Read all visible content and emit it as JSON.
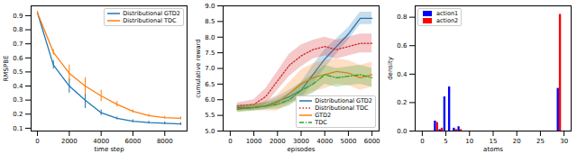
{
  "chart_data": [
    {
      "type": "line",
      "x_label": "time step",
      "y_label": "RMSPBE",
      "xlim": [
        -400,
        9400
      ],
      "xticks": [
        0,
        2000,
        4000,
        6000,
        8000
      ],
      "ylim": [
        0.08,
        0.97
      ],
      "yticks": [
        0.1,
        0.2,
        0.3,
        0.4,
        0.5,
        0.6,
        0.7,
        0.8,
        0.9
      ],
      "legend": "upper right",
      "x": [
        0,
        1000,
        2000,
        3000,
        4000,
        5000,
        6000,
        7000,
        8000,
        9000
      ],
      "series": [
        {
          "name": "Distributional GTD2",
          "color": "#1f77b4",
          "line_style": "solid",
          "values": [
            0.92,
            0.55,
            0.4,
            0.3,
            0.21,
            0.17,
            0.15,
            0.14,
            0.135,
            0.13
          ],
          "errors": [
            0.01,
            0.03,
            0.05,
            0.06,
            0.02,
            0.01,
            0.01,
            0.01,
            0.01,
            0.01
          ]
        },
        {
          "name": "Distributional TDC",
          "color": "#ff7f0e",
          "line_style": "solid",
          "values": [
            0.92,
            0.64,
            0.49,
            0.4,
            0.33,
            0.27,
            0.22,
            0.19,
            0.175,
            0.17
          ],
          "errors": [
            0.01,
            0.02,
            0.06,
            0.06,
            0.04,
            0.02,
            0.01,
            0.01,
            0.01,
            0.01
          ]
        }
      ]
    },
    {
      "type": "line",
      "x_label": "episodes",
      "y_label": "cumulative reward",
      "xlim": [
        -300,
        6300
      ],
      "xticks": [
        0,
        1000,
        2000,
        3000,
        4000,
        5000,
        6000
      ],
      "ylim": [
        5.0,
        9.0
      ],
      "yticks": [
        {
          "value": 5,
          "label": "5.0"
        },
        5.5,
        {
          "value": 6,
          "label": "6.0"
        },
        6.5,
        {
          "value": 7,
          "label": "7.0"
        },
        7.5,
        {
          "value": 8,
          "label": "8.0"
        },
        8.5,
        {
          "value": 9,
          "label": "9.0"
        }
      ],
      "legend": "lower right",
      "x": [
        300,
        1000,
        1500,
        2000,
        2500,
        3000,
        3500,
        4000,
        4500,
        5000,
        5500,
        6000
      ],
      "series": [
        {
          "name": "Distributional GTD2",
          "color": "#1f77b4",
          "line_style": "solid",
          "values": [
            5.75,
            5.75,
            5.8,
            5.95,
            6.1,
            6.3,
            6.8,
            7.3,
            7.7,
            8.1,
            8.6,
            8.6
          ],
          "band": [
            0.1,
            0.1,
            0.12,
            0.15,
            0.2,
            0.25,
            0.3,
            0.3,
            0.25,
            0.2,
            0.2,
            0.2
          ]
        },
        {
          "name": "Distributional TDC",
          "color": "#d62728",
          "line_style": "dotted",
          "values": [
            5.8,
            5.85,
            6.1,
            6.6,
            7.1,
            7.4,
            7.6,
            7.7,
            7.6,
            7.7,
            7.8,
            7.8
          ],
          "band": [
            0.1,
            0.15,
            0.25,
            0.3,
            0.35,
            0.35,
            0.3,
            0.3,
            0.3,
            0.3,
            0.3,
            0.3
          ]
        },
        {
          "name": "GTD2",
          "color": "#ff7f0e",
          "line_style": "solid",
          "values": [
            5.7,
            5.75,
            5.8,
            5.9,
            6.2,
            6.5,
            6.7,
            6.8,
            6.9,
            6.85,
            6.7,
            6.8
          ],
          "band": [
            0.1,
            0.1,
            0.15,
            0.25,
            0.35,
            0.45,
            0.45,
            0.45,
            0.4,
            0.4,
            0.4,
            0.4
          ]
        },
        {
          "name": "TDC",
          "color": "#2ca02c",
          "line_style": "dashdot",
          "values": [
            5.7,
            5.75,
            5.8,
            5.85,
            6.0,
            6.3,
            6.5,
            6.8,
            6.7,
            6.75,
            6.8,
            6.7
          ],
          "band": [
            0.1,
            0.1,
            0.1,
            0.15,
            0.2,
            0.25,
            0.3,
            0.3,
            0.3,
            0.3,
            0.3,
            0.3
          ]
        }
      ]
    },
    {
      "type": "bar",
      "x_label": "atoms",
      "y_label": "density",
      "xlim": [
        -1.5,
        31.5
      ],
      "xticks": [
        0,
        5,
        10,
        15,
        20,
        25,
        30
      ],
      "ylim": [
        0,
        0.88
      ],
      "yticks": [
        {
          "value": 0,
          "label": "0.0"
        },
        0.2,
        0.4,
        0.6,
        0.8
      ],
      "legend": "upper left",
      "x": [
        3,
        4,
        5,
        6,
        7,
        8,
        29
      ],
      "series": [
        {
          "name": "action1",
          "color": "#0000ff",
          "values": [
            0.07,
            0.01,
            0.24,
            0.31,
            0.02,
            0.03,
            0.3
          ]
        },
        {
          "name": "action2",
          "color": "#ff0000",
          "values": [
            0.06,
            0.02,
            0,
            0,
            0.01,
            0.01,
            0.82
          ]
        }
      ]
    }
  ]
}
